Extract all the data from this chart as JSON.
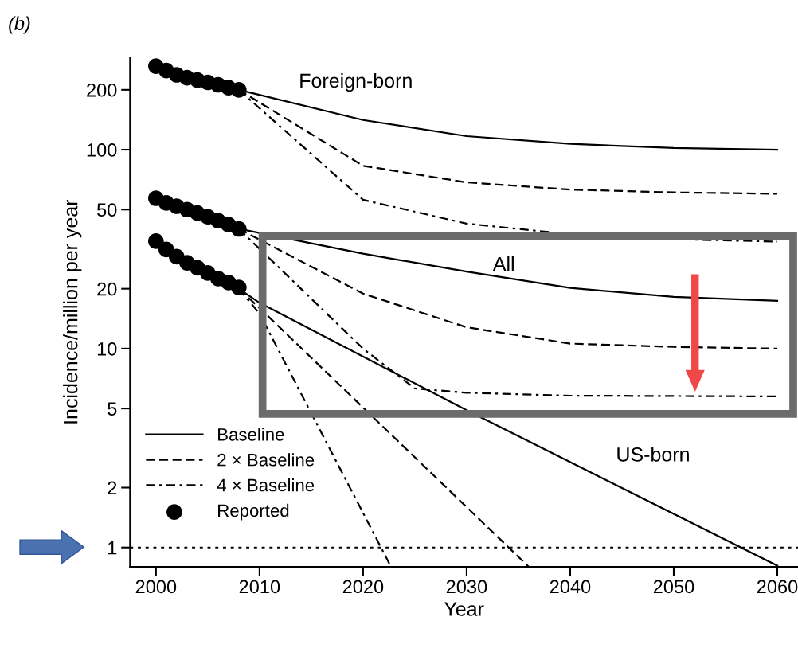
{
  "chart_data": {
    "type": "line",
    "title": "(b)",
    "xlabel": "Year",
    "ylabel": "Incidence/million per year",
    "log": "y",
    "xlim": [
      1997.5,
      2062
    ],
    "xticks": [
      2000,
      2010,
      2020,
      2030,
      2040,
      2050,
      2060
    ],
    "ylim": [
      0.8,
      290
    ],
    "yticks": [
      1,
      2,
      5,
      10,
      20,
      50,
      100,
      200
    ],
    "legend": "bottom left",
    "grid": false,
    "annotations": [
      {
        "text": "Foreign-born",
        "x": 2019.3,
        "y": 141
      },
      {
        "text": "All",
        "x": 2033.6,
        "y": 22.7
      },
      {
        "text": "US-born",
        "x": 2048,
        "y": 1.66
      }
    ],
    "ref_lines": [
      {
        "axis": "y",
        "value": 1,
        "line_style": "dotted",
        "color": "#000000"
      }
    ],
    "series": [
      {
        "name": "Reported",
        "type": "scatter",
        "marker": "circle",
        "color": "#000000",
        "x": [
          2000,
          2001,
          2002,
          2003,
          2004,
          2005,
          2006,
          2007,
          2008
        ],
        "values": [
          263,
          250,
          238,
          230,
          224,
          218,
          212,
          205,
          200
        ]
      },
      {
        "type": "scatter",
        "marker": "circle",
        "color": "#000000",
        "x": [
          2000,
          2001,
          2002,
          2003,
          2004,
          2005,
          2006,
          2007,
          2008
        ],
        "values": [
          57,
          54,
          52,
          50,
          48,
          46,
          44,
          42,
          40
        ]
      },
      {
        "type": "scatter",
        "marker": "circle",
        "color": "#000000",
        "x": [
          2000,
          2001,
          2002,
          2003,
          2004,
          2005,
          2006,
          2007,
          2008
        ],
        "values": [
          34.7,
          31.5,
          29,
          27,
          25.5,
          24,
          22.5,
          21.5,
          20.3
        ]
      },
      {
        "name": "Baseline",
        "line_style": "solid",
        "color": "#000000",
        "x": [
          2008,
          2020,
          2030,
          2040,
          2050,
          2060
        ],
        "values": [
          200,
          141,
          117,
          107,
          102,
          100
        ]
      },
      {
        "name": "2 × Baseline",
        "line_style": "dashed",
        "color": "#000000",
        "x": [
          2008,
          2020,
          2030,
          2040,
          2050,
          2060
        ],
        "values": [
          200,
          83,
          68.5,
          63,
          61,
          60
        ]
      },
      {
        "name": "4 × Baseline",
        "line_style": "dashdot",
        "color": "#000000",
        "x": [
          2008,
          2020,
          2030,
          2040,
          2050,
          2060
        ],
        "values": [
          200,
          56,
          42.5,
          37.6,
          35.5,
          34.5
        ]
      },
      {
        "line_style": "solid",
        "color": "#000000",
        "x": [
          2008,
          2020,
          2030,
          2040,
          2050,
          2060
        ],
        "values": [
          40,
          30,
          24.4,
          20.2,
          18.2,
          17.4
        ]
      },
      {
        "line_style": "dashed",
        "color": "#000000",
        "x": [
          2008,
          2020,
          2030,
          2040,
          2050,
          2060
        ],
        "values": [
          40,
          18.9,
          12.8,
          10.6,
          10.2,
          10
        ]
      },
      {
        "line_style": "dashdot",
        "color": "#000000",
        "x": [
          2008,
          2020,
          2025,
          2030,
          2040,
          2060
        ],
        "values": [
          40,
          10,
          6.3,
          6,
          5.8,
          5.75
        ]
      },
      {
        "line_style": "solid",
        "color": "#000000",
        "x": [
          2008,
          2010,
          2030,
          2060
        ],
        "values": [
          20,
          17,
          4.9,
          0.81
        ]
      },
      {
        "line_style": "dashed",
        "color": "#000000",
        "x": [
          2008,
          2010,
          2036
        ],
        "values": [
          20,
          16,
          0.8
        ]
      },
      {
        "line_style": "dashdot",
        "color": "#000000",
        "x": [
          2008,
          2010,
          2022.7
        ],
        "values": [
          20,
          15,
          0.8
        ]
      }
    ]
  }
}
